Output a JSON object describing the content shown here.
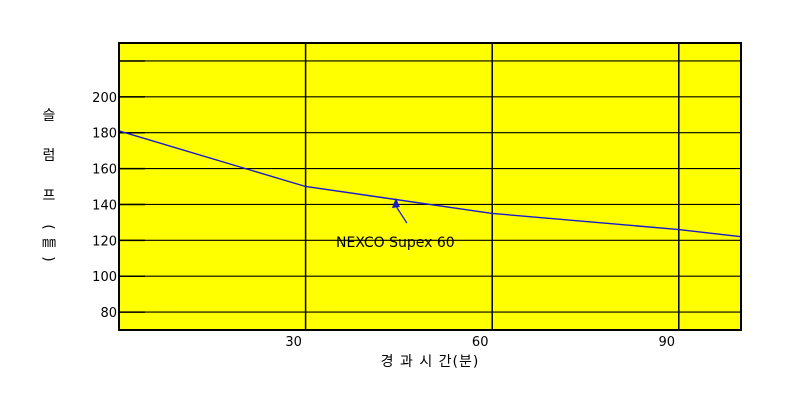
{
  "chart_data": {
    "type": "line",
    "xlabel": "경 과 시 간(분)",
    "ylabel_chars": [
      "슬",
      "럼",
      "프",
      "(",
      "㎜",
      ")"
    ],
    "x_ticks": [
      30,
      60,
      90
    ],
    "y_ticks": [
      80,
      100,
      120,
      140,
      160,
      180,
      200
    ],
    "xlim": [
      0,
      100
    ],
    "ylim": [
      70,
      230
    ],
    "grid": true,
    "plot_background": "#ffff00",
    "series": [
      {
        "name": "NEXCO Supex 60",
        "color": "#1a1acc",
        "x": [
          0,
          30,
          60,
          90,
          100
        ],
        "y": [
          181,
          150,
          135,
          126,
          122
        ]
      }
    ],
    "annotation": {
      "text": "NEXCO Supex 60",
      "point_x": 45,
      "point_y": 143
    }
  }
}
